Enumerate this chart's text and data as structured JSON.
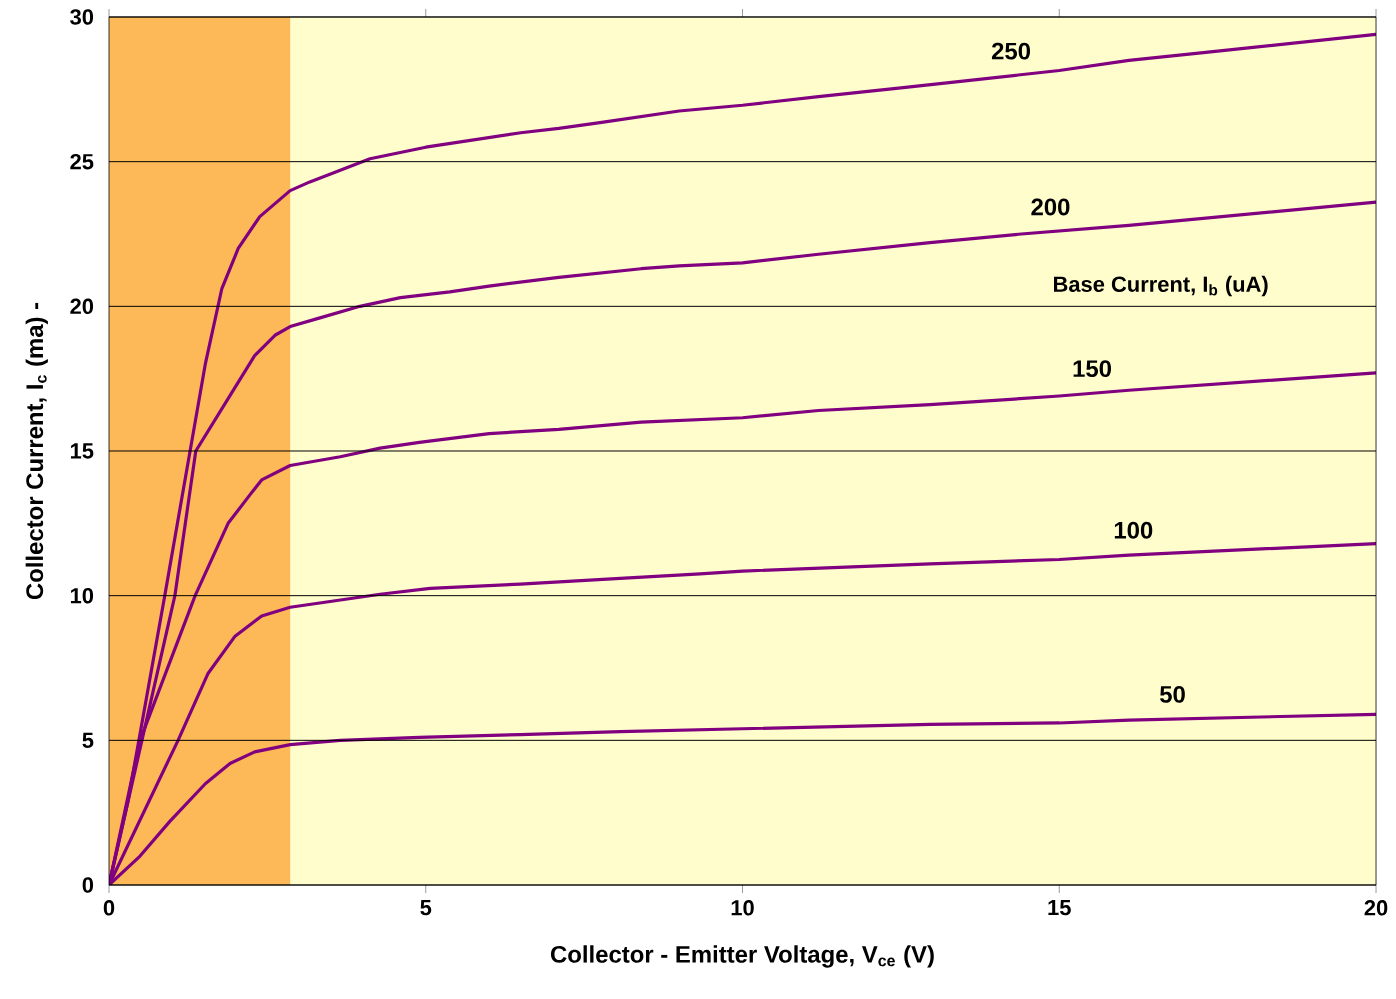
{
  "chart_data": {
    "type": "line",
    "xlabel": "Collector - Emitter Voltage, V$_{ce}$ (V)",
    "ylabel": "Collector Current, I$_{c}$ (ma)  -",
    "annotations": [
      "Base Current, I$_{b}$ (uA)"
    ],
    "xlim": [
      0,
      20
    ],
    "ylim": [
      0,
      30
    ],
    "xticks": [
      0,
      5,
      10,
      15,
      20
    ],
    "yticks": [
      0,
      5,
      10,
      15,
      20,
      25,
      30
    ],
    "grid": "y",
    "marker": "none",
    "line_style": "solid",
    "bands": [
      {
        "axis": "x",
        "from": 0,
        "to": 2.86,
        "color": "#fdb957"
      }
    ],
    "series": [
      {
        "name": "250",
        "color": "#800080",
        "x": [
          0,
          0.3,
          0.88,
          1.28,
          1.52,
          1.78,
          2.04,
          2.38,
          2.86,
          3.17,
          4.12,
          5.0,
          6.5,
          7.1,
          7.75,
          9.0,
          10.0,
          11.2,
          12.5,
          15.0,
          16.1,
          17.2,
          20.0
        ],
        "values": [
          0,
          2.9,
          10,
          15,
          18,
          20.6,
          22,
          23.1,
          24,
          24.3,
          25.1,
          25.5,
          26.0,
          26.15,
          26.35,
          26.75,
          26.95,
          27.25,
          27.55,
          28.15,
          28.5,
          28.75,
          29.4
        ]
      },
      {
        "name": "200",
        "color": "#800080",
        "x": [
          0,
          1.04,
          1.37,
          1.99,
          2.3,
          2.62,
          2.86,
          3.33,
          3.96,
          4.6,
          5.38,
          6.0,
          7.1,
          8.4,
          9.0,
          10.0,
          11.2,
          12.96,
          14.4,
          16.1,
          20.0
        ],
        "values": [
          0,
          10,
          15,
          17.2,
          18.3,
          19,
          19.3,
          19.6,
          20,
          20.3,
          20.5,
          20.7,
          21,
          21.3,
          21.4,
          21.5,
          21.8,
          22.2,
          22.5,
          22.8,
          23.6
        ]
      },
      {
        "name": "150",
        "color": "#800080",
        "x": [
          0,
          0.49,
          1.36,
          1.88,
          2.23,
          2.41,
          2.86,
          3.65,
          4.28,
          4.9,
          6.0,
          7.1,
          8.4,
          10.0,
          11.2,
          12.96,
          15.0,
          16.1,
          20.0
        ],
        "values": [
          0,
          5,
          10,
          12.5,
          13.5,
          14,
          14.5,
          14.8,
          15.1,
          15.3,
          15.6,
          15.75,
          16,
          16.15,
          16.4,
          16.6,
          16.9,
          17.1,
          17.7
        ]
      },
      {
        "name": "100",
        "color": "#800080",
        "x": [
          0,
          1.09,
          1.56,
          1.99,
          2.41,
          2.86,
          3.49,
          4.28,
          5.07,
          6.49,
          8.07,
          9.33,
          10.0,
          12.96,
          15.0,
          16.1,
          20.0
        ],
        "values": [
          0,
          5,
          7.3,
          8.6,
          9.3,
          9.6,
          9.8,
          10.05,
          10.25,
          10.4,
          10.6,
          10.75,
          10.85,
          11.1,
          11.25,
          11.4,
          11.8
        ]
      },
      {
        "name": "50",
        "color": "#800080",
        "x": [
          0,
          0.49,
          0.96,
          1.52,
          1.91,
          2.3,
          2.86,
          3.65,
          4.9,
          6.49,
          8.07,
          10.0,
          12.96,
          15.0,
          16.1,
          20.0
        ],
        "values": [
          0,
          1,
          2.2,
          3.5,
          4.2,
          4.6,
          4.85,
          5.0,
          5.1,
          5.2,
          5.3,
          5.4,
          5.55,
          5.6,
          5.7,
          5.9
        ]
      }
    ]
  }
}
